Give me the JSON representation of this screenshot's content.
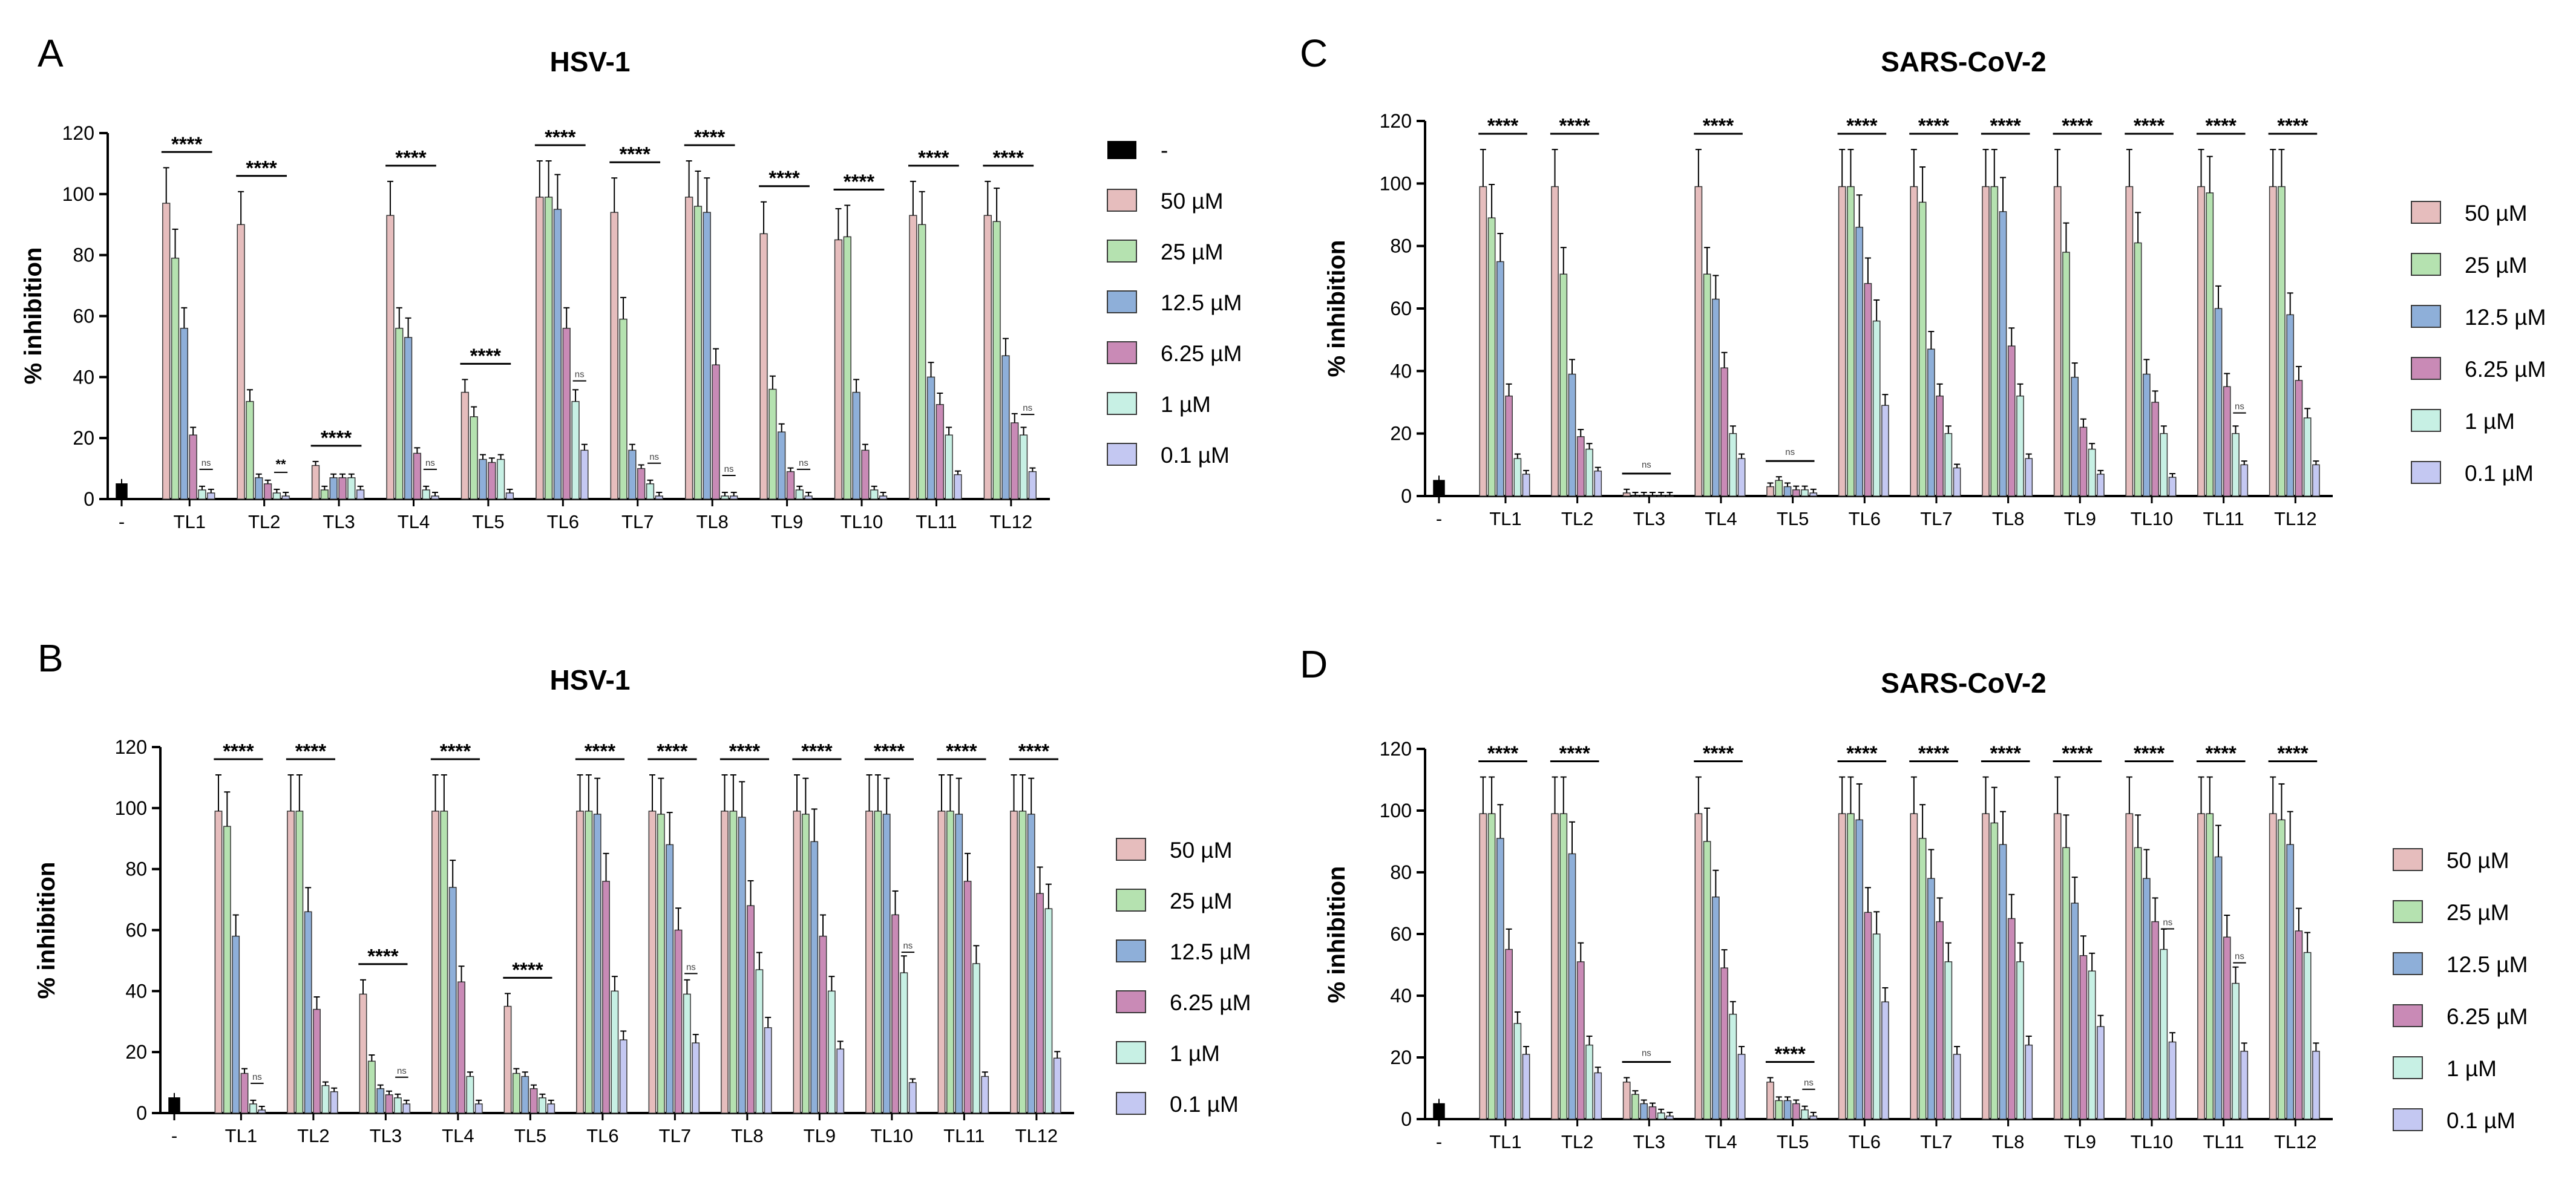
{
  "chart_data": [
    {
      "panel": "A",
      "type": "bar",
      "title": "HSV-1",
      "ylabel": "% inhibition",
      "ylim": [
        0,
        120
      ],
      "yticks": [
        0,
        20,
        40,
        60,
        80,
        100,
        120
      ],
      "control": {
        "label": "-",
        "legend": "-",
        "value": 5,
        "color": "#000000"
      },
      "categories": [
        "TL1",
        "TL2",
        "TL3",
        "TL4",
        "TL5",
        "TL6",
        "TL7",
        "TL8",
        "TL9",
        "TL10",
        "TL11",
        "TL12"
      ],
      "series": [
        {
          "name": "50 µM",
          "color": "#E6BDBD",
          "values": [
            97,
            90,
            11,
            93,
            35,
            99,
            94,
            99,
            87,
            85,
            93,
            93
          ]
        },
        {
          "name": "25 µM",
          "color": "#B5E2B0",
          "values": [
            79,
            32,
            3,
            56,
            27,
            99,
            59,
            96,
            36,
            86,
            90,
            91
          ]
        },
        {
          "name": "12.5 µM",
          "color": "#8EAFD9",
          "values": [
            56,
            7,
            7,
            53,
            13,
            95,
            16,
            94,
            22,
            35,
            40,
            47
          ]
        },
        {
          "name": "6.25 µM",
          "color": "#C98AB6",
          "values": [
            21,
            5,
            7,
            15,
            12,
            56,
            10,
            44,
            9,
            16,
            31,
            25
          ]
        },
        {
          "name": "1 µM",
          "color": "#C7F0E4",
          "values": [
            3,
            2,
            7,
            3,
            13,
            32,
            5,
            1,
            3,
            3,
            21,
            21
          ]
        },
        {
          "name": "0.1 µM",
          "color": "#C4C8F2",
          "values": [
            2,
            1,
            3,
            1,
            2,
            16,
            1,
            1,
            1,
            1,
            8,
            9
          ]
        }
      ],
      "significance": [
        "****",
        "****",
        "****",
        "****",
        "****",
        "****",
        "****",
        "****",
        "****",
        "****",
        "****",
        "****"
      ],
      "minor_marks": [
        {
          "category": "TL1",
          "text": "ns"
        },
        {
          "category": "TL2",
          "text": "**"
        },
        {
          "category": "TL4",
          "text": "ns"
        },
        {
          "category": "TL6",
          "text": "ns"
        },
        {
          "category": "TL7",
          "text": "ns"
        },
        {
          "category": "TL8",
          "text": "ns"
        },
        {
          "category": "TL9",
          "text": "ns"
        },
        {
          "category": "TL12",
          "text": "ns"
        }
      ]
    },
    {
      "panel": "B",
      "type": "bar",
      "title": "HSV-1",
      "ylabel": "% inhibition",
      "ylim": [
        0,
        120
      ],
      "yticks": [
        0,
        20,
        40,
        60,
        80,
        100,
        120
      ],
      "control": {
        "label": "-",
        "value": 5,
        "color": "#000000"
      },
      "categories": [
        "TL1",
        "TL2",
        "TL3",
        "TL4",
        "TL5",
        "TL6",
        "TL7",
        "TL8",
        "TL9",
        "TL10",
        "TL11",
        "TL12"
      ],
      "series": [
        {
          "name": "50 µM",
          "color": "#E6BDBD",
          "values": [
            99,
            99,
            39,
            99,
            35,
            99,
            99,
            99,
            99,
            99,
            99,
            99
          ]
        },
        {
          "name": "25 µM",
          "color": "#B5E2B0",
          "values": [
            94,
            99,
            17,
            99,
            13,
            99,
            98,
            99,
            98,
            99,
            99,
            99
          ]
        },
        {
          "name": "12.5 µM",
          "color": "#8EAFD9",
          "values": [
            58,
            66,
            8,
            74,
            12,
            98,
            88,
            97,
            89,
            98,
            98,
            98
          ]
        },
        {
          "name": "6.25 µM",
          "color": "#C98AB6",
          "values": [
            13,
            34,
            6,
            43,
            8,
            76,
            60,
            68,
            58,
            65,
            76,
            72
          ]
        },
        {
          "name": "1 µM",
          "color": "#C7F0E4",
          "values": [
            3,
            9,
            5,
            12,
            5,
            40,
            39,
            47,
            40,
            46,
            49,
            67
          ]
        },
        {
          "name": "0.1 µM",
          "color": "#C4C8F2",
          "values": [
            1,
            7,
            3,
            3,
            3,
            24,
            23,
            28,
            21,
            10,
            12,
            18
          ]
        }
      ],
      "significance": [
        "****",
        "****",
        "****",
        "****",
        "****",
        "****",
        "****",
        "****",
        "****",
        "****",
        "****",
        "****"
      ],
      "minor_marks": [
        {
          "category": "TL1",
          "text": "ns"
        },
        {
          "category": "TL3",
          "text": "ns"
        },
        {
          "category": "TL7",
          "text": "ns"
        },
        {
          "category": "TL10",
          "text": "ns"
        }
      ]
    },
    {
      "panel": "C",
      "type": "bar",
      "title": "SARS-CoV-2",
      "ylabel": "% inhibition",
      "ylim": [
        0,
        120
      ],
      "yticks": [
        0,
        20,
        40,
        60,
        80,
        100,
        120
      ],
      "control": {
        "label": "-",
        "value": 5,
        "color": "#000000"
      },
      "categories": [
        "TL1",
        "TL2",
        "TL3",
        "TL4",
        "TL5",
        "TL6",
        "TL7",
        "TL8",
        "TL9",
        "TL10",
        "TL11",
        "TL12"
      ],
      "series": [
        {
          "name": "50 µM",
          "color": "#E6BDBD",
          "values": [
            99,
            99,
            1,
            99,
            3,
            99,
            99,
            99,
            99,
            99,
            99,
            99
          ]
        },
        {
          "name": "25 µM",
          "color": "#B5E2B0",
          "values": [
            89,
            71,
            0,
            71,
            5,
            99,
            94,
            99,
            78,
            81,
            97,
            99
          ]
        },
        {
          "name": "12.5 µM",
          "color": "#8EAFD9",
          "values": [
            75,
            39,
            0,
            63,
            3,
            86,
            47,
            91,
            38,
            39,
            60,
            58
          ]
        },
        {
          "name": "6.25 µM",
          "color": "#C98AB6",
          "values": [
            32,
            19,
            0,
            41,
            2,
            68,
            32,
            48,
            22,
            30,
            35,
            37
          ]
        },
        {
          "name": "1 µM",
          "color": "#C7F0E4",
          "values": [
            12,
            15,
            0,
            20,
            2,
            56,
            20,
            32,
            15,
            20,
            20,
            25
          ]
        },
        {
          "name": "0.1 µM",
          "color": "#C4C8F2",
          "values": [
            7,
            8,
            0,
            12,
            1,
            29,
            9,
            12,
            7,
            6,
            10,
            10
          ]
        }
      ],
      "significance": [
        "****",
        "****",
        "ns",
        "****",
        "ns",
        "****",
        "****",
        "****",
        "****",
        "****",
        "****",
        "****"
      ],
      "minor_marks": [
        {
          "category": "TL11",
          "text": "ns"
        }
      ]
    },
    {
      "panel": "D",
      "type": "bar",
      "title": "SARS-CoV-2",
      "ylabel": "% inhibition",
      "ylim": [
        0,
        120
      ],
      "yticks": [
        0,
        20,
        40,
        60,
        80,
        100,
        120
      ],
      "control": {
        "label": "-",
        "value": 5,
        "color": "#000000"
      },
      "categories": [
        "TL1",
        "TL2",
        "TL3",
        "TL4",
        "TL5",
        "TL6",
        "TL7",
        "TL8",
        "TL9",
        "TL10",
        "TL11",
        "TL12"
      ],
      "series": [
        {
          "name": "50 µM",
          "color": "#E6BDBD",
          "values": [
            99,
            99,
            12,
            99,
            12,
            99,
            99,
            99,
            99,
            99,
            99,
            99
          ]
        },
        {
          "name": "25 µM",
          "color": "#B5E2B0",
          "values": [
            99,
            99,
            8,
            90,
            6,
            99,
            91,
            96,
            88,
            88,
            99,
            97
          ]
        },
        {
          "name": "12.5 µM",
          "color": "#8EAFD9",
          "values": [
            91,
            86,
            5,
            72,
            6,
            97,
            78,
            89,
            70,
            78,
            85,
            89
          ]
        },
        {
          "name": "6.25 µM",
          "color": "#C98AB6",
          "values": [
            55,
            51,
            4,
            49,
            5,
            67,
            64,
            65,
            53,
            64,
            59,
            61
          ]
        },
        {
          "name": "1 µM",
          "color": "#C7F0E4",
          "values": [
            31,
            24,
            2,
            34,
            3,
            60,
            51,
            51,
            48,
            55,
            44,
            54
          ]
        },
        {
          "name": "0.1 µM",
          "color": "#C4C8F2",
          "values": [
            21,
            15,
            1,
            21,
            1,
            38,
            21,
            24,
            30,
            25,
            22,
            22
          ]
        }
      ],
      "significance": [
        "****",
        "****",
        "ns",
        "****",
        "****",
        "****",
        "****",
        "****",
        "****",
        "****",
        "****",
        "****"
      ],
      "minor_marks": [
        {
          "category": "TL5",
          "text": "ns"
        },
        {
          "category": "TL10",
          "text": "ns"
        },
        {
          "category": "TL11",
          "text": "ns"
        }
      ]
    }
  ]
}
